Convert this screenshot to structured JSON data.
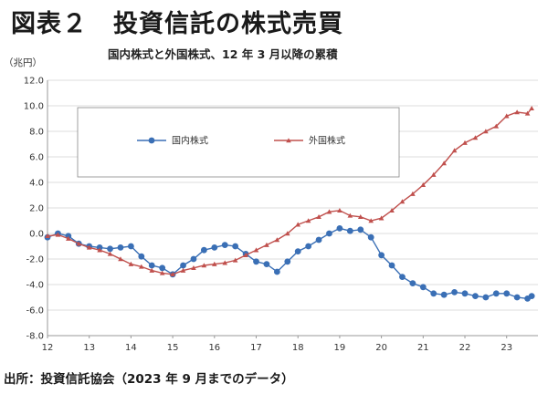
{
  "title": "図表２　投資信託の株式売買",
  "chart_data": {
    "type": "line",
    "title": "国内株式と外国株式、12 年 3 月以降の累積",
    "ylabel": "（兆円）",
    "ylim": [
      -8.0,
      12.0
    ],
    "xlim": [
      12.0,
      23.75
    ],
    "y_ticks": [
      "12.0",
      "10.0",
      "8.0",
      "6.0",
      "4.0",
      "2.0",
      "0.0",
      "-2.0",
      "-4.0",
      "-6.0",
      "-8.0"
    ],
    "x_ticks": [
      "12",
      "13",
      "14",
      "15",
      "16",
      "17",
      "18",
      "19",
      "20",
      "21",
      "22",
      "23"
    ],
    "legend": {
      "position": "upper-left",
      "entries": [
        "国内株式",
        "外国株式"
      ]
    },
    "series": [
      {
        "name": "国内株式",
        "color": "#3a6fb5",
        "marker": "circle",
        "x": [
          12.0,
          12.25,
          12.5,
          12.75,
          13.0,
          13.25,
          13.5,
          13.75,
          14.0,
          14.25,
          14.5,
          14.75,
          15.0,
          15.25,
          15.5,
          15.75,
          16.0,
          16.25,
          16.5,
          16.75,
          17.0,
          17.25,
          17.5,
          17.75,
          18.0,
          18.25,
          18.5,
          18.75,
          19.0,
          19.25,
          19.5,
          19.75,
          20.0,
          20.25,
          20.5,
          20.75,
          21.0,
          21.25,
          21.5,
          21.75,
          22.0,
          22.25,
          22.5,
          22.75,
          23.0,
          23.25,
          23.5,
          23.6
        ],
        "values": [
          -0.3,
          0.0,
          -0.2,
          -0.8,
          -1.0,
          -1.1,
          -1.2,
          -1.1,
          -1.0,
          -1.8,
          -2.5,
          -2.7,
          -3.2,
          -2.5,
          -2.0,
          -1.3,
          -1.1,
          -0.9,
          -1.0,
          -1.6,
          -2.2,
          -2.4,
          -3.0,
          -2.2,
          -1.4,
          -1.0,
          -0.5,
          0.0,
          0.4,
          0.2,
          0.3,
          -0.3,
          -1.7,
          -2.5,
          -3.4,
          -3.9,
          -4.2,
          -4.7,
          -4.8,
          -4.6,
          -4.7,
          -4.9,
          -5.0,
          -4.7,
          -4.7,
          -5.0,
          -5.1,
          -4.9
        ]
      },
      {
        "name": "外国株式",
        "color": "#c0504d",
        "marker": "triangle",
        "x": [
          12.0,
          12.25,
          12.5,
          12.75,
          13.0,
          13.25,
          13.5,
          13.75,
          14.0,
          14.25,
          14.5,
          14.75,
          15.0,
          15.25,
          15.5,
          15.75,
          16.0,
          16.25,
          16.5,
          16.75,
          17.0,
          17.25,
          17.5,
          17.75,
          18.0,
          18.25,
          18.5,
          18.75,
          19.0,
          19.25,
          19.5,
          19.75,
          20.0,
          20.25,
          20.5,
          20.75,
          21.0,
          21.25,
          21.5,
          21.75,
          22.0,
          22.25,
          22.5,
          22.75,
          23.0,
          23.25,
          23.5,
          23.6
        ],
        "values": [
          -0.2,
          -0.1,
          -0.4,
          -0.8,
          -1.1,
          -1.3,
          -1.6,
          -2.0,
          -2.4,
          -2.6,
          -2.9,
          -3.1,
          -3.2,
          -2.9,
          -2.7,
          -2.5,
          -2.4,
          -2.3,
          -2.1,
          -1.7,
          -1.3,
          -0.9,
          -0.5,
          0.0,
          0.7,
          1.0,
          1.3,
          1.7,
          1.8,
          1.4,
          1.3,
          1.0,
          1.2,
          1.8,
          2.5,
          3.1,
          3.8,
          4.6,
          5.5,
          6.5,
          7.1,
          7.5,
          8.0,
          8.4,
          9.2,
          9.5,
          9.4,
          9.8
        ]
      }
    ]
  },
  "source": "出所：投資信託協会（2023 年 9 月までのデータ）"
}
